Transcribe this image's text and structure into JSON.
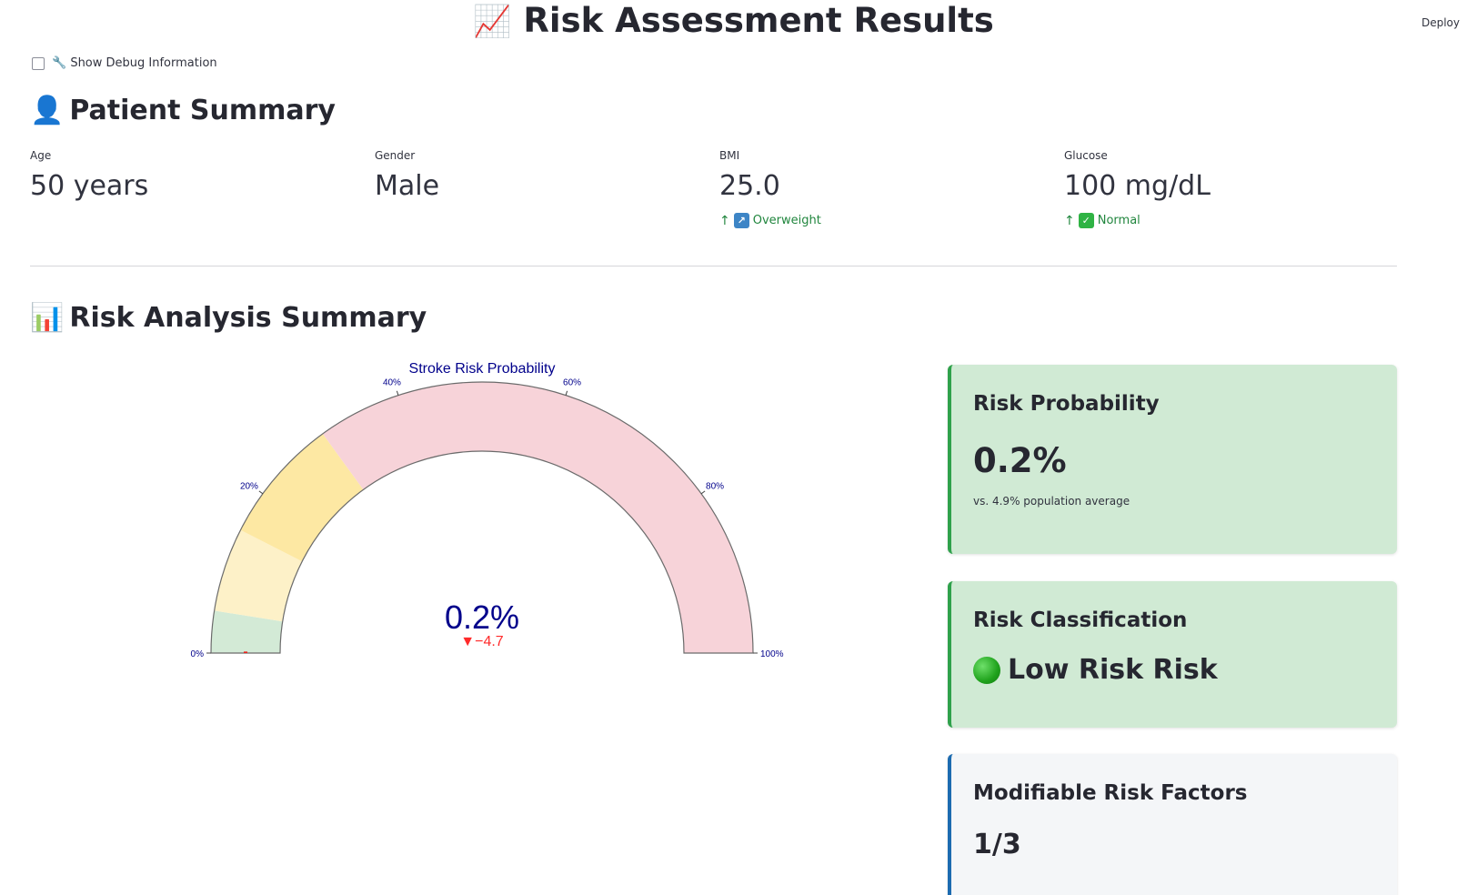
{
  "header": {
    "title_emoji": "📈",
    "title": "Risk Assessment Results",
    "deploy_label": "Deploy"
  },
  "debug": {
    "icon": "wrench-icon",
    "label": "🔧 Show Debug Information",
    "checked": false
  },
  "patient_summary": {
    "emoji": "👤",
    "title": "Patient Summary",
    "metrics": [
      {
        "label": "Age",
        "value": "50 years",
        "delta": null
      },
      {
        "label": "Gender",
        "value": "Male",
        "delta": null
      },
      {
        "label": "BMI",
        "value": "25.0",
        "delta": {
          "arrow": "↑",
          "icon": "arrow-up-right-icon",
          "icon_glyph": "↗",
          "icon_color": "#3d85c6",
          "text": "Overweight"
        }
      },
      {
        "label": "Glucose",
        "value": "100 mg/dL",
        "delta": {
          "arrow": "↑",
          "icon": "check-mark-icon",
          "icon_glyph": "✓",
          "icon_color": "#2fb344",
          "text": "Normal"
        }
      }
    ]
  },
  "risk_summary": {
    "emoji": "📊",
    "title": "Risk Analysis Summary"
  },
  "chart_data": {
    "type": "gauge",
    "title": "Stroke Risk Probability",
    "value": 0.2,
    "value_label": "0.2%",
    "delta": -4.7,
    "delta_label": "▼−4.7",
    "reference": 4.9,
    "range": [
      0,
      100
    ],
    "ticks": [
      {
        "value": 0,
        "label": "0%"
      },
      {
        "value": 20,
        "label": "20%"
      },
      {
        "value": 40,
        "label": "40%"
      },
      {
        "value": 60,
        "label": "60%"
      },
      {
        "value": 80,
        "label": "80%"
      },
      {
        "value": 100,
        "label": "100%"
      }
    ],
    "steps": [
      {
        "from": 0,
        "to": 5,
        "color": "#d3ead6"
      },
      {
        "from": 5,
        "to": 15,
        "color": "#fdf1c8"
      },
      {
        "from": 15,
        "to": 30,
        "color": "#fde8a3"
      },
      {
        "from": 30,
        "to": 100,
        "color": "#f7d3d9"
      }
    ],
    "bar_color": "#e8231d",
    "title_color": "#00008b",
    "delta_color": "#ff2a2a"
  },
  "cards": {
    "probability": {
      "title": "Risk Probability",
      "value": "0.2%",
      "sub": "vs. 4.9% population average"
    },
    "classification": {
      "title": "Risk Classification",
      "icon": "green-circle-icon",
      "value": "Low Risk Risk"
    },
    "modifiable": {
      "title": "Modifiable Risk Factors",
      "value": "1/3"
    }
  }
}
